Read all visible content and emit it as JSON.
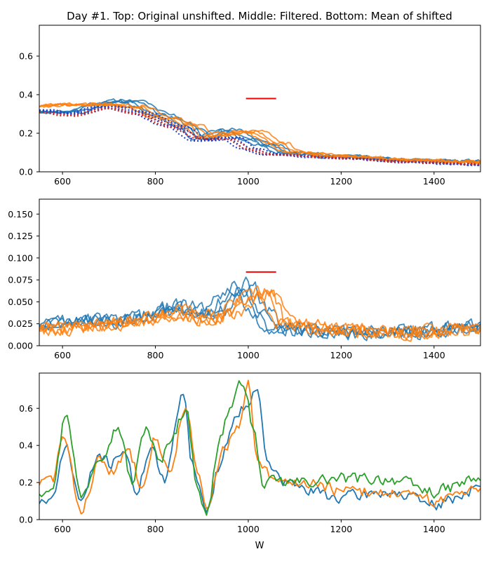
{
  "figure": {
    "title": "Day #1. Top: Original unshifted. Middle: Filtered. Bottom: Mean of shifted",
    "xlabel": "W"
  },
  "colors": {
    "blue": "#1f77b4",
    "orange": "#ff7f0e",
    "green": "#2ca02c",
    "red": "#ff0000",
    "darkblue": "#1f3fc8",
    "darkred": "#cc2222"
  },
  "chart_data": [
    {
      "type": "line",
      "panel": "top",
      "xlim": [
        550,
        1500
      ],
      "ylim": [
        0,
        0.76
      ],
      "xticks": [
        600,
        800,
        1000,
        1200,
        1400
      ],
      "yticks": [
        0.0,
        0.2,
        0.4,
        0.6
      ],
      "ytick_labels": [
        "0.0",
        "0.2",
        "0.4",
        "0.6"
      ],
      "marker_segment": {
        "x": [
          995,
          1060
        ],
        "y": 0.38,
        "color": "red"
      },
      "series_groups": [
        {
          "name": "blue-solid",
          "style": "solid",
          "color": "blue",
          "count": 4,
          "seed": 11,
          "noise": 0.012,
          "alpha": 0.85,
          "knots": [
            [
              550,
              0.31
            ],
            [
              620,
              0.31
            ],
            [
              700,
              0.36
            ],
            [
              740,
              0.37
            ],
            [
              820,
              0.29
            ],
            [
              880,
              0.22
            ],
            [
              900,
              0.17
            ],
            [
              950,
              0.22
            ],
            [
              1000,
              0.17
            ],
            [
              1040,
              0.14
            ],
            [
              1080,
              0.1
            ],
            [
              1200,
              0.08
            ],
            [
              1350,
              0.06
            ],
            [
              1500,
              0.055
            ]
          ]
        },
        {
          "name": "orange-solid",
          "style": "solid",
          "color": "orange",
          "count": 4,
          "seed": 23,
          "noise": 0.012,
          "alpha": 0.85,
          "knots": [
            [
              550,
              0.34
            ],
            [
              620,
              0.35
            ],
            [
              700,
              0.35
            ],
            [
              750,
              0.34
            ],
            [
              820,
              0.28
            ],
            [
              880,
              0.24
            ],
            [
              910,
              0.18
            ],
            [
              960,
              0.2
            ],
            [
              1010,
              0.21
            ],
            [
              1060,
              0.15
            ],
            [
              1100,
              0.1
            ],
            [
              1200,
              0.08
            ],
            [
              1350,
              0.06
            ],
            [
              1500,
              0.05
            ]
          ]
        },
        {
          "name": "blue-dotted",
          "style": "dotted",
          "color": "darkblue",
          "count": 4,
          "seed": 37,
          "noise": 0.004,
          "alpha": 1.0,
          "knots": [
            [
              550,
              0.32
            ],
            [
              620,
              0.3
            ],
            [
              700,
              0.34
            ],
            [
              760,
              0.31
            ],
            [
              840,
              0.24
            ],
            [
              900,
              0.16
            ],
            [
              960,
              0.18
            ],
            [
              1000,
              0.12
            ],
            [
              1050,
              0.09
            ],
            [
              1200,
              0.07
            ],
            [
              1350,
              0.05
            ],
            [
              1500,
              0.035
            ]
          ]
        },
        {
          "name": "red-dotted",
          "style": "dotted",
          "color": "darkred",
          "count": 2,
          "seed": 41,
          "noise": 0.004,
          "alpha": 1.0,
          "knots": [
            [
              550,
              0.31
            ],
            [
              620,
              0.29
            ],
            [
              700,
              0.33
            ],
            [
              760,
              0.3
            ],
            [
              840,
              0.23
            ],
            [
              900,
              0.17
            ],
            [
              960,
              0.17
            ],
            [
              1000,
              0.12
            ],
            [
              1050,
              0.09
            ],
            [
              1200,
              0.07
            ],
            [
              1350,
              0.05
            ],
            [
              1500,
              0.04
            ]
          ]
        }
      ]
    },
    {
      "type": "line",
      "panel": "middle",
      "xlim": [
        550,
        1500
      ],
      "ylim": [
        0,
        0.167
      ],
      "xticks": [
        600,
        800,
        1000,
        1200,
        1400
      ],
      "yticks": [
        0.0,
        0.025,
        0.05,
        0.075,
        0.1,
        0.125,
        0.15
      ],
      "ytick_labels": [
        "0.000",
        "0.025",
        "0.050",
        "0.075",
        "0.100",
        "0.125",
        "0.150"
      ],
      "marker_segment": {
        "x": [
          995,
          1060
        ],
        "y": 0.084,
        "color": "red"
      },
      "series_groups": [
        {
          "name": "blue-filtered",
          "style": "solid",
          "color": "blue",
          "count": 4,
          "seed": 53,
          "noise": 0.011,
          "alpha": 0.85,
          "knots": [
            [
              550,
              0.025
            ],
            [
              640,
              0.03
            ],
            [
              700,
              0.028
            ],
            [
              780,
              0.035
            ],
            [
              850,
              0.045
            ],
            [
              880,
              0.04
            ],
            [
              920,
              0.035
            ],
            [
              960,
              0.055
            ],
            [
              990,
              0.07
            ],
            [
              1020,
              0.04
            ],
            [
              1060,
              0.02
            ],
            [
              1200,
              0.015
            ],
            [
              1350,
              0.015
            ],
            [
              1500,
              0.022
            ]
          ]
        },
        {
          "name": "orange-filtered",
          "style": "solid",
          "color": "orange",
          "count": 4,
          "seed": 67,
          "noise": 0.011,
          "alpha": 0.85,
          "knots": [
            [
              550,
              0.02
            ],
            [
              640,
              0.02
            ],
            [
              700,
              0.025
            ],
            [
              780,
              0.03
            ],
            [
              860,
              0.04
            ],
            [
              900,
              0.03
            ],
            [
              950,
              0.035
            ],
            [
              1010,
              0.055
            ],
            [
              1040,
              0.06
            ],
            [
              1080,
              0.025
            ],
            [
              1200,
              0.018
            ],
            [
              1350,
              0.015
            ],
            [
              1500,
              0.02
            ]
          ]
        }
      ]
    },
    {
      "type": "line",
      "panel": "bottom",
      "xlim": [
        550,
        1500
      ],
      "ylim": [
        0,
        0.79
      ],
      "xticks": [
        600,
        800,
        1000,
        1200,
        1400
      ],
      "yticks": [
        0.0,
        0.2,
        0.4,
        0.6
      ],
      "ytick_labels": [
        "0.0",
        "0.2",
        "0.4",
        "0.6"
      ],
      "series": [
        {
          "name": "mean-shifted-1",
          "color": "blue",
          "seed": 71,
          "noise": 0.045,
          "knots": [
            [
              550,
              0.1
            ],
            [
              580,
              0.1
            ],
            [
              605,
              0.4
            ],
            [
              640,
              0.1
            ],
            [
              680,
              0.35
            ],
            [
              700,
              0.3
            ],
            [
              730,
              0.38
            ],
            [
              760,
              0.15
            ],
            [
              790,
              0.4
            ],
            [
              820,
              0.2
            ],
            [
              860,
              0.7
            ],
            [
              880,
              0.3
            ],
            [
              910,
              0.05
            ],
            [
              940,
              0.3
            ],
            [
              970,
              0.55
            ],
            [
              990,
              0.6
            ],
            [
              1020,
              0.73
            ],
            [
              1040,
              0.3
            ],
            [
              1080,
              0.2
            ],
            [
              1140,
              0.15
            ],
            [
              1200,
              0.12
            ],
            [
              1300,
              0.15
            ],
            [
              1400,
              0.08
            ],
            [
              1500,
              0.17
            ]
          ]
        },
        {
          "name": "mean-shifted-2",
          "color": "orange",
          "seed": 83,
          "noise": 0.045,
          "knots": [
            [
              550,
              0.2
            ],
            [
              580,
              0.22
            ],
            [
              600,
              0.45
            ],
            [
              640,
              0.05
            ],
            [
              680,
              0.32
            ],
            [
              710,
              0.25
            ],
            [
              740,
              0.38
            ],
            [
              770,
              0.2
            ],
            [
              800,
              0.45
            ],
            [
              830,
              0.25
            ],
            [
              865,
              0.62
            ],
            [
              890,
              0.25
            ],
            [
              910,
              0.05
            ],
            [
              950,
              0.4
            ],
            [
              980,
              0.5
            ],
            [
              1000,
              0.72
            ],
            [
              1020,
              0.3
            ],
            [
              1060,
              0.2
            ],
            [
              1140,
              0.2
            ],
            [
              1200,
              0.15
            ],
            [
              1300,
              0.15
            ],
            [
              1400,
              0.1
            ],
            [
              1500,
              0.18
            ]
          ]
        },
        {
          "name": "mean-shifted-3",
          "color": "green",
          "seed": 97,
          "noise": 0.045,
          "knots": [
            [
              550,
              0.15
            ],
            [
              580,
              0.2
            ],
            [
              608,
              0.58
            ],
            [
              640,
              0.12
            ],
            [
              680,
              0.35
            ],
            [
              720,
              0.5
            ],
            [
              750,
              0.2
            ],
            [
              780,
              0.5
            ],
            [
              810,
              0.3
            ],
            [
              835,
              0.45
            ],
            [
              865,
              0.6
            ],
            [
              890,
              0.2
            ],
            [
              910,
              0.02
            ],
            [
              940,
              0.45
            ],
            [
              960,
              0.6
            ],
            [
              990,
              0.75
            ],
            [
              1010,
              0.5
            ],
            [
              1030,
              0.2
            ],
            [
              1100,
              0.2
            ],
            [
              1200,
              0.22
            ],
            [
              1300,
              0.22
            ],
            [
              1400,
              0.15
            ],
            [
              1500,
              0.22
            ]
          ]
        }
      ]
    }
  ]
}
